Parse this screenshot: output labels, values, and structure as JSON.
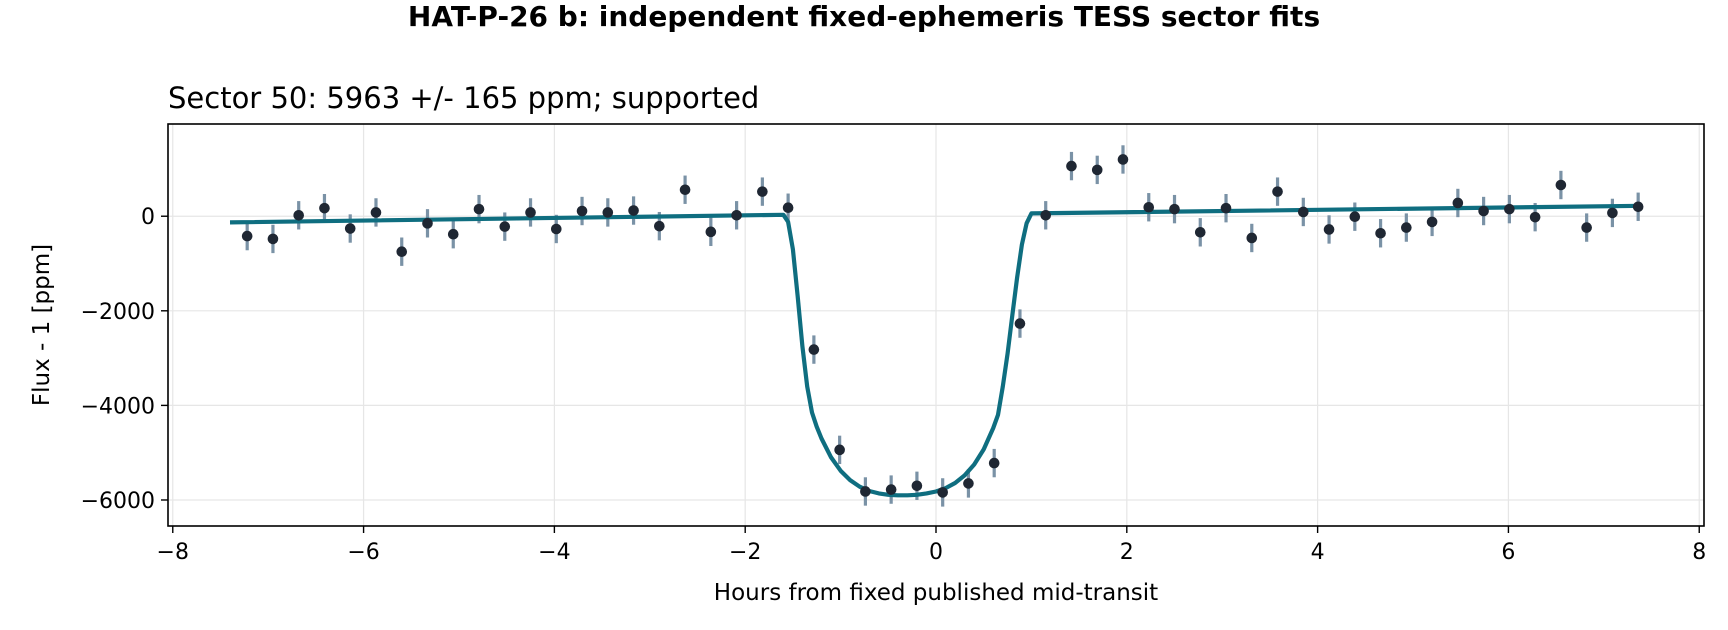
{
  "figure": {
    "suptitle": "HAT-P-26 b: independent fixed-ephemeris TESS sector fits"
  },
  "chart_data": {
    "type": "scatter",
    "title": "Sector 50: 5963 +/- 165 ppm; supported",
    "xlabel": "Hours from fixed published mid-transit",
    "ylabel": "Flux - 1 [ppm]",
    "xlim": [
      -8.05,
      8.05
    ],
    "ylim": [
      -6550,
      1950
    ],
    "xticks": [
      -8,
      -6,
      -4,
      -2,
      0,
      2,
      4,
      6,
      8
    ],
    "xtick_labels": [
      "−8",
      "−6",
      "−4",
      "−2",
      "0",
      "2",
      "4",
      "6",
      "8"
    ],
    "yticks": [
      0,
      -2000,
      -4000,
      -6000
    ],
    "ytick_labels": [
      "0",
      "−2000",
      "−4000",
      "−6000"
    ],
    "grid": true,
    "colors": {
      "points": "#1f2733",
      "errorbars": "#7a92a6",
      "model": "#0f6e80",
      "grid": "#e6e6e6"
    },
    "series": [
      {
        "kind": "binned_points_with_errorbars",
        "x": [
          -7.22,
          -6.95,
          -6.68,
          -6.41,
          -6.14,
          -5.87,
          -5.6,
          -5.33,
          -5.06,
          -4.79,
          -4.52,
          -4.25,
          -3.98,
          -3.71,
          -3.44,
          -3.17,
          -2.9,
          -2.63,
          -2.36,
          -2.09,
          -1.82,
          -1.55,
          -1.28,
          -1.01,
          -0.74,
          -0.47,
          -0.2,
          0.07,
          0.34,
          0.61,
          0.88,
          1.15,
          1.42,
          1.69,
          1.96,
          2.23,
          2.5,
          2.77,
          3.04,
          3.31,
          3.58,
          3.85,
          4.12,
          4.39,
          4.66,
          4.93,
          5.2,
          5.47,
          5.74,
          6.01,
          6.28,
          6.55,
          6.82,
          7.09,
          7.36
        ],
        "y": [
          -420,
          -480,
          20,
          170,
          -260,
          80,
          -750,
          -150,
          -380,
          150,
          -220,
          80,
          -270,
          110,
          80,
          120,
          -210,
          560,
          -330,
          20,
          520,
          180,
          -2820,
          -4940,
          -5820,
          -5780,
          -5700,
          -5840,
          -5650,
          -5220,
          -2270,
          20,
          1060,
          980,
          1200,
          190,
          150,
          -340,
          170,
          -460,
          520,
          90,
          -280,
          -10,
          -360,
          -240,
          -120,
          280,
          110,
          150,
          -20,
          660,
          -240,
          70,
          200
        ],
        "yerr": [
          300,
          300,
          300,
          300,
          300,
          300,
          300,
          300,
          300,
          300,
          300,
          300,
          300,
          300,
          300,
          300,
          300,
          300,
          300,
          300,
          300,
          300,
          300,
          300,
          300,
          300,
          300,
          300,
          300,
          300,
          300,
          300,
          300,
          300,
          300,
          300,
          300,
          300,
          300,
          300,
          300,
          300,
          300,
          300,
          300,
          300,
          300,
          300,
          300,
          300,
          300,
          300,
          300,
          300,
          300
        ]
      },
      {
        "kind": "transit_model",
        "x": [
          -7.4,
          -1.6,
          -1.55,
          -1.5,
          -1.45,
          -1.4,
          -1.35,
          -1.3,
          -1.25,
          -1.2,
          -1.1,
          -1.0,
          -0.9,
          -0.8,
          -0.7,
          -0.6,
          -0.5,
          -0.4,
          -0.3,
          -0.2,
          -0.1,
          0.0,
          0.1,
          0.2,
          0.3,
          0.4,
          0.5,
          0.6,
          0.65,
          0.7,
          0.75,
          0.8,
          0.85,
          0.9,
          0.95,
          1.0,
          7.4
        ],
        "y": [
          -130,
          30,
          -120,
          -700,
          -1700,
          -2750,
          -3600,
          -4150,
          -4450,
          -4700,
          -5100,
          -5380,
          -5580,
          -5720,
          -5810,
          -5860,
          -5890,
          -5900,
          -5900,
          -5890,
          -5860,
          -5820,
          -5750,
          -5640,
          -5480,
          -5250,
          -4930,
          -4480,
          -4200,
          -3600,
          -2900,
          -2100,
          -1300,
          -600,
          -150,
          60,
          220
        ]
      }
    ]
  }
}
